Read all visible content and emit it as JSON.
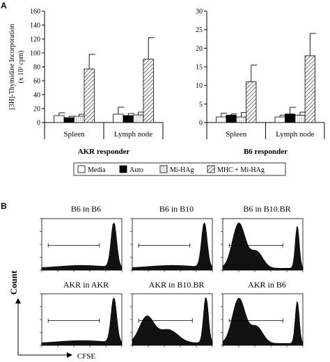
{
  "panel_a": {
    "letter": "A",
    "y_axis_label": "[3H]-Thymidine Incorporation",
    "y_axis_unit": "(x 10³ cpm)",
    "legend": [
      {
        "label": "Media",
        "pattern": "white"
      },
      {
        "label": "Auto",
        "pattern": "black"
      },
      {
        "label": "Mi-HAg",
        "pattern": "dots"
      },
      {
        "label": "MHC + Mi-HAg",
        "pattern": "hatch"
      }
    ]
  },
  "chart_data": [
    {
      "type": "bar",
      "title": "AKR responder",
      "categories": [
        "Spleen",
        "Lymph node"
      ],
      "ylabel": "[3H]-Thymidine Incorporation (x 10³ cpm)",
      "ylim": [
        0,
        160
      ],
      "yticks": [
        0,
        20,
        40,
        60,
        80,
        100,
        120,
        140,
        160
      ],
      "series": [
        {
          "name": "Media",
          "values": [
            10,
            12
          ],
          "errors": [
            4,
            10
          ]
        },
        {
          "name": "Auto",
          "values": [
            7,
            10
          ],
          "errors": [
            2,
            3
          ]
        },
        {
          "name": "Mi-HAg",
          "values": [
            9,
            11
          ],
          "errors": [
            3,
            4
          ]
        },
        {
          "name": "MHC + Mi-HAg",
          "values": [
            77,
            91
          ],
          "errors": [
            21,
            31
          ]
        }
      ]
    },
    {
      "type": "bar",
      "title": "B6 responder",
      "categories": [
        "Spleen",
        "Lymph node"
      ],
      "ylabel": "[3H]-Thymidine Incorporation (x 10³ cpm)",
      "ylim": [
        0,
        30
      ],
      "yticks": [
        0,
        5,
        10,
        15,
        20,
        25,
        30
      ],
      "series": [
        {
          "name": "Media",
          "values": [
            1.5,
            1.5
          ],
          "errors": [
            1,
            0.5
          ]
        },
        {
          "name": "Auto",
          "values": [
            2,
            2.3
          ],
          "errors": [
            0.3,
            1.8
          ]
        },
        {
          "name": "Mi-HAg",
          "values": [
            1.5,
            2
          ],
          "errors": [
            1.2,
            0.8
          ]
        },
        {
          "name": "MHC + Mi-HAg",
          "values": [
            11,
            18
          ],
          "errors": [
            4.5,
            6
          ]
        }
      ]
    }
  ],
  "panel_b": {
    "letter": "B",
    "y_axis_label": "Count",
    "x_axis_label": "CFSE",
    "histograms": [
      {
        "title": "B6 in B6",
        "profile": "undivided"
      },
      {
        "title": "B6 in B10",
        "profile": "undivided"
      },
      {
        "title": "B6 in B10.BR",
        "profile": "divided"
      },
      {
        "title": "AKR in AKR",
        "profile": "undivided"
      },
      {
        "title": "AKR in B10.BR",
        "profile": "partial"
      },
      {
        "title": "AKR in B6",
        "profile": "divided"
      }
    ]
  }
}
